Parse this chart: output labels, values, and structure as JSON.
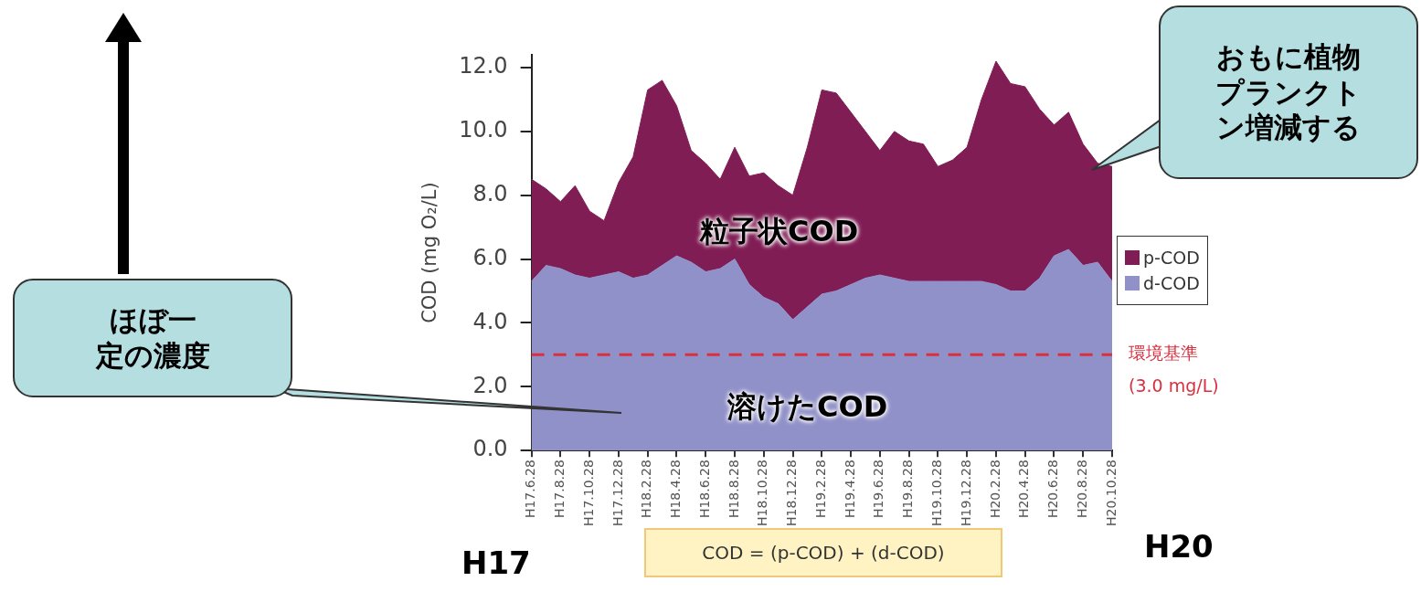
{
  "chart_data": {
    "type": "area",
    "stacked": true,
    "ylabel": "COD (mg O₂/L)",
    "categories": [
      "H17.6.28",
      null,
      "H17.8.28",
      null,
      "H17.10.28",
      null,
      "H17.12.28",
      null,
      "H18.2.28",
      null,
      "H18.4.28",
      null,
      "H18.6.28",
      null,
      "H18.8.28",
      null,
      "H18.10.28",
      null,
      "H18.12.28",
      null,
      "H19.2.28",
      null,
      "H19.4.28",
      null,
      "H19.6.28",
      null,
      "H19.8.28",
      null,
      "H19.10.28",
      null,
      "H19.12.28",
      null,
      "H20.2.28",
      null,
      "H20.4.28",
      null,
      "H20.6.28",
      null,
      "H20.8.28",
      null,
      "H20.10.28"
    ],
    "series": [
      {
        "name": "d-COD",
        "color": "#9191c9",
        "values": [
          5.3,
          5.8,
          5.7,
          5.5,
          5.4,
          5.5,
          5.6,
          5.4,
          5.5,
          5.8,
          6.1,
          5.9,
          5.6,
          5.7,
          6.0,
          5.2,
          4.8,
          4.6,
          4.1,
          4.5,
          4.9,
          5.0,
          5.2,
          5.4,
          5.5,
          5.4,
          5.3,
          5.3,
          5.3,
          5.3,
          5.3,
          5.3,
          5.2,
          5.0,
          5.0,
          5.4,
          6.1,
          6.3,
          5.8,
          5.9,
          5.3
        ]
      },
      {
        "name": "p-COD",
        "color": "#811d55",
        "values": [
          3.2,
          2.4,
          2.1,
          2.8,
          2.1,
          1.7,
          2.8,
          3.8,
          5.8,
          5.8,
          4.7,
          3.5,
          3.4,
          2.8,
          3.5,
          3.4,
          3.9,
          3.7,
          3.9,
          5.0,
          6.4,
          6.2,
          5.4,
          4.6,
          3.9,
          4.6,
          4.4,
          4.3,
          3.6,
          3.8,
          4.2,
          5.7,
          7.0,
          6.5,
          6.4,
          5.3,
          4.1,
          4.3,
          3.8,
          3.1,
          3.6
        ]
      }
    ],
    "ylim": [
      0,
      12.4
    ],
    "yticks": [
      {
        "value": 0,
        "label": "0.0"
      },
      {
        "value": 2,
        "label": "2.0"
      },
      {
        "value": 4,
        "label": "4.0"
      },
      {
        "value": 6,
        "label": "6.0"
      },
      {
        "value": 8,
        "label": "8.0"
      },
      {
        "value": 10,
        "label": "10.0"
      },
      {
        "value": 12,
        "label": "12.0"
      }
    ],
    "ref_lines": [
      {
        "axis": "y",
        "value": 3.0,
        "label": "環境基準\n(3.0 mg/L)",
        "color": "#d9303f",
        "line_style": "dashed"
      }
    ],
    "legend": "right",
    "grid": false,
    "annotations": [
      "粒子状COD",
      "溶けたCOD",
      "ほぼ一定の濃度",
      "おもに植物プランクトン増減する",
      "H17",
      "H20",
      "COD = (p-COD) + (d-COD)"
    ]
  }
}
